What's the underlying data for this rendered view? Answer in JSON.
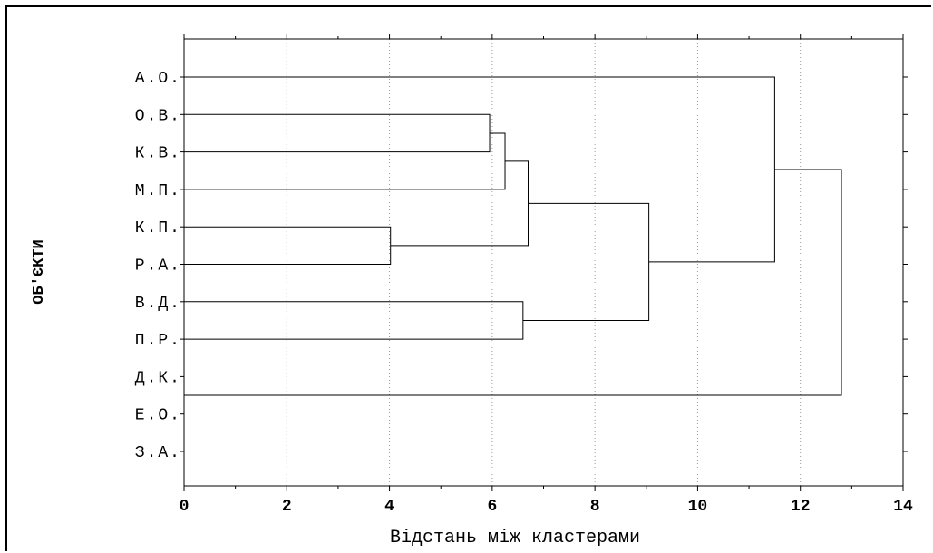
{
  "chart_data": {
    "type": "dendrogram",
    "title": "",
    "xlabel": "Відстань між кластерами",
    "ylabel": "ОБ'ЄКТИ",
    "xlim": [
      0,
      14
    ],
    "x_ticks": [
      0,
      2,
      4,
      6,
      8,
      10,
      12,
      14
    ],
    "grid": "vertical dotted",
    "leaves": [
      "А.О.",
      "О.В.",
      "К.В.",
      "М.П.",
      "К.П.",
      "Р.А.",
      "В.Д.",
      "П.Р.",
      "Д.К.",
      "Е.О.",
      "З.А."
    ],
    "merges": [
      {
        "left": "К.П.",
        "right": "Р.А.",
        "distance": 4.02
      },
      {
        "left": "О.В.",
        "right": "К.В.",
        "distance": 5.95
      },
      {
        "left": "О.В.+К.В.",
        "right": "М.П.",
        "distance": 6.25
      },
      {
        "left": "В.Д.",
        "right": "П.Р.",
        "distance": 6.6
      },
      {
        "left": "О.В.+К.В.+М.П.",
        "right": "К.П.+Р.А.",
        "distance": 6.7
      },
      {
        "left": "О.В.+К.В.+М.П.+К.П.+Р.А.",
        "right": "В.Д.+П.Р.",
        "distance": 9.05
      },
      {
        "left": "А.О.",
        "right": "О.В.+К.В.+М.П.+К.П.+Р.А.+В.Д.+П.Р.",
        "distance": 11.5
      },
      {
        "left": "Д.К.",
        "right": "Е.О.",
        "distance": 0.0
      },
      {
        "left": "А.О.+О.В.+К.В.+М.П.+К.П.+Р.А.+В.Д.+П.Р.",
        "right": "Д.К.+Е.О.",
        "distance": 12.8
      }
    ]
  }
}
